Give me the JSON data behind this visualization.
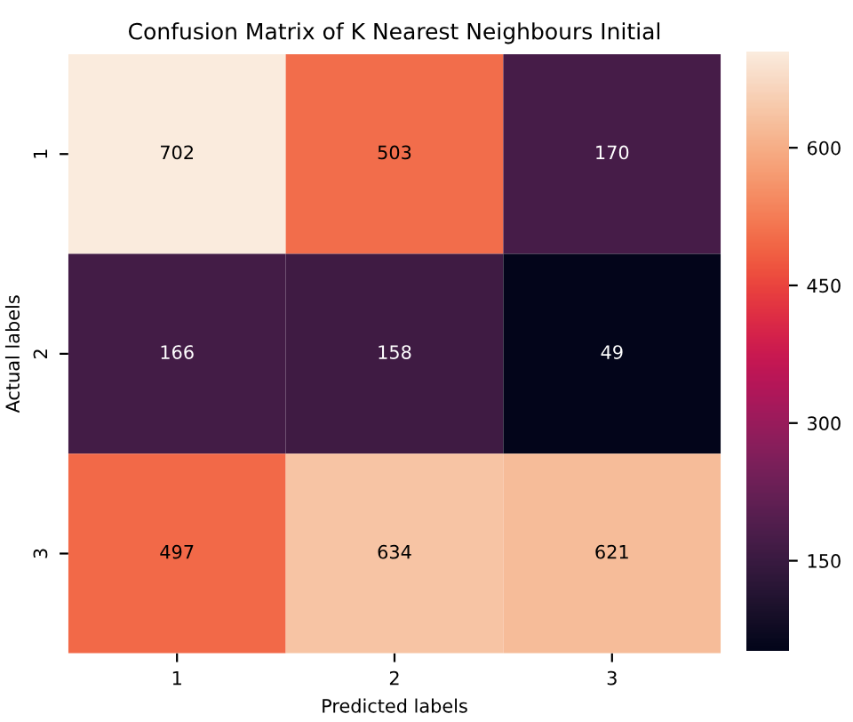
{
  "chart_data": {
    "type": "heatmap",
    "title": "Confusion Matrix of K Nearest Neighbours Initial",
    "xlabel": "Predicted labels",
    "ylabel": "Actual labels",
    "categories": [
      "1",
      "2",
      "3"
    ],
    "y_categories": [
      "1",
      "2",
      "3"
    ],
    "cells": [
      [
        702,
        503,
        170
      ],
      [
        166,
        158,
        49
      ],
      [
        497,
        634,
        621
      ]
    ],
    "clim": [
      49,
      702
    ],
    "cticks": [
      150,
      300,
      450,
      600
    ],
    "data_labels": true
  }
}
